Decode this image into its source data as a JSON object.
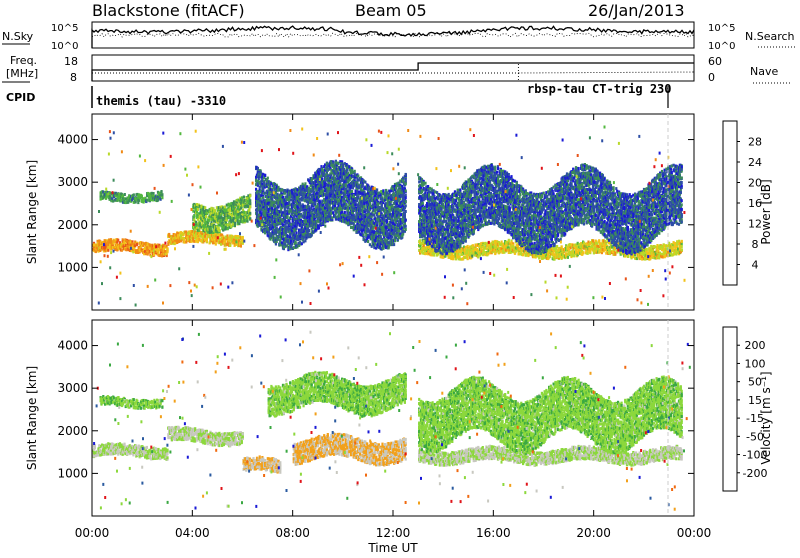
{
  "header": {
    "station": "Blackstone (fitACF)",
    "beam": "Beam 05",
    "date": "26/Jan/2013"
  },
  "noise_panel": {
    "label_left": "N.Sky",
    "ticks_left": [
      "10^5",
      "10^0"
    ],
    "label_right": "N.Search",
    "ticks_right": [
      "10^5",
      "10^0"
    ]
  },
  "freq_panel": {
    "label_left_1": "Freq.",
    "label_left_2": "[MHz]",
    "ticks_left": [
      "18",
      "8"
    ],
    "label_right": "Nave",
    "ticks_right": [
      "60",
      "0"
    ]
  },
  "cpid_panel": {
    "label": "CPID",
    "mode_1": "themis (tau) -3310",
    "mode_2": "rbsp-tau CT-trig 230"
  },
  "colors": {
    "power_scale": [
      "#1a1ad6",
      "#2e4fa5",
      "#3c8c5a",
      "#53b83f",
      "#b9d92a",
      "#f2c21a",
      "#f08a16",
      "#e8541a",
      "#e0141a"
    ],
    "velocity_scale": [
      "#e0141a",
      "#f06a10",
      "#f2a01a",
      "#c8c8c0",
      "#8cd83c",
      "#3aa842",
      "#2a5aa0",
      "#1a1ad6"
    ]
  },
  "chart_data": [
    {
      "type": "heatmap",
      "title": "",
      "ylabel": "Slant Range [km]",
      "xlabel": "",
      "ylim": [
        0,
        4600
      ],
      "y_ticks": [
        "1000",
        "2000",
        "3000",
        "4000"
      ],
      "colorbar_label": "Power [dB]",
      "colorbar_ticks": [
        "4",
        "8",
        "12",
        "16",
        "20",
        "24",
        "28"
      ],
      "colorbar_range": [
        0,
        32
      ],
      "bands": [
        {
          "t_start": 0.0,
          "t_end": 3.0,
          "range_center": 1500,
          "range_width": 260,
          "value": 22
        },
        {
          "t_start": 3.0,
          "t_end": 6.0,
          "range_center": 1700,
          "range_width": 250,
          "value": 20
        },
        {
          "t_start": 0.3,
          "t_end": 2.8,
          "range_center": 2700,
          "range_width": 200,
          "value": 10
        },
        {
          "t_start": 4.0,
          "t_end": 6.3,
          "range_center": 2300,
          "range_width": 600,
          "value": 12
        },
        {
          "t_start": 6.5,
          "t_end": 12.5,
          "range_center": 2500,
          "range_width": 1400,
          "value": 6
        },
        {
          "t_start": 13.0,
          "t_end": 23.5,
          "range_center": 1450,
          "range_width": 300,
          "value": 18
        },
        {
          "t_start": 13.0,
          "t_end": 23.5,
          "range_center": 2400,
          "range_width": 1400,
          "value": 6
        }
      ]
    },
    {
      "type": "heatmap",
      "title": "",
      "ylabel": "Slant Range [km]",
      "xlabel": "Time UT",
      "ylim": [
        0,
        4600
      ],
      "y_ticks": [
        "1000",
        "2000",
        "3000",
        "4000"
      ],
      "x_ticks": [
        "00:00",
        "04:00",
        "08:00",
        "12:00",
        "16:00",
        "20:00",
        "00:00"
      ],
      "xlim": [
        0,
        24
      ],
      "colorbar_label": "Velocity [m s⁻¹]",
      "colorbar_ticks": [
        "-200",
        "-100",
        "-50",
        "-15",
        "15",
        "50",
        "100",
        "200"
      ],
      "colorbar_range": [
        -250,
        250
      ],
      "bands": [
        {
          "t_start": 0.0,
          "t_end": 3.0,
          "range_center": 1550,
          "range_width": 260,
          "value": 0
        },
        {
          "t_start": 0.3,
          "t_end": 2.8,
          "range_center": 2700,
          "range_width": 200,
          "value": 40
        },
        {
          "t_start": 3.0,
          "t_end": 6.0,
          "range_center": 1900,
          "range_width": 300,
          "value": 0
        },
        {
          "t_start": 6.0,
          "t_end": 7.5,
          "range_center": 1200,
          "range_width": 300,
          "value": -60
        },
        {
          "t_start": 8.0,
          "t_end": 12.5,
          "range_center": 1600,
          "range_width": 500,
          "value": -70
        },
        {
          "t_start": 7.0,
          "t_end": 12.5,
          "range_center": 2900,
          "range_width": 700,
          "value": 40
        },
        {
          "t_start": 13.0,
          "t_end": 23.5,
          "range_center": 1450,
          "range_width": 300,
          "value": 0
        },
        {
          "t_start": 13.0,
          "t_end": 23.5,
          "range_center": 2400,
          "range_width": 1200,
          "value": 40
        }
      ]
    }
  ]
}
